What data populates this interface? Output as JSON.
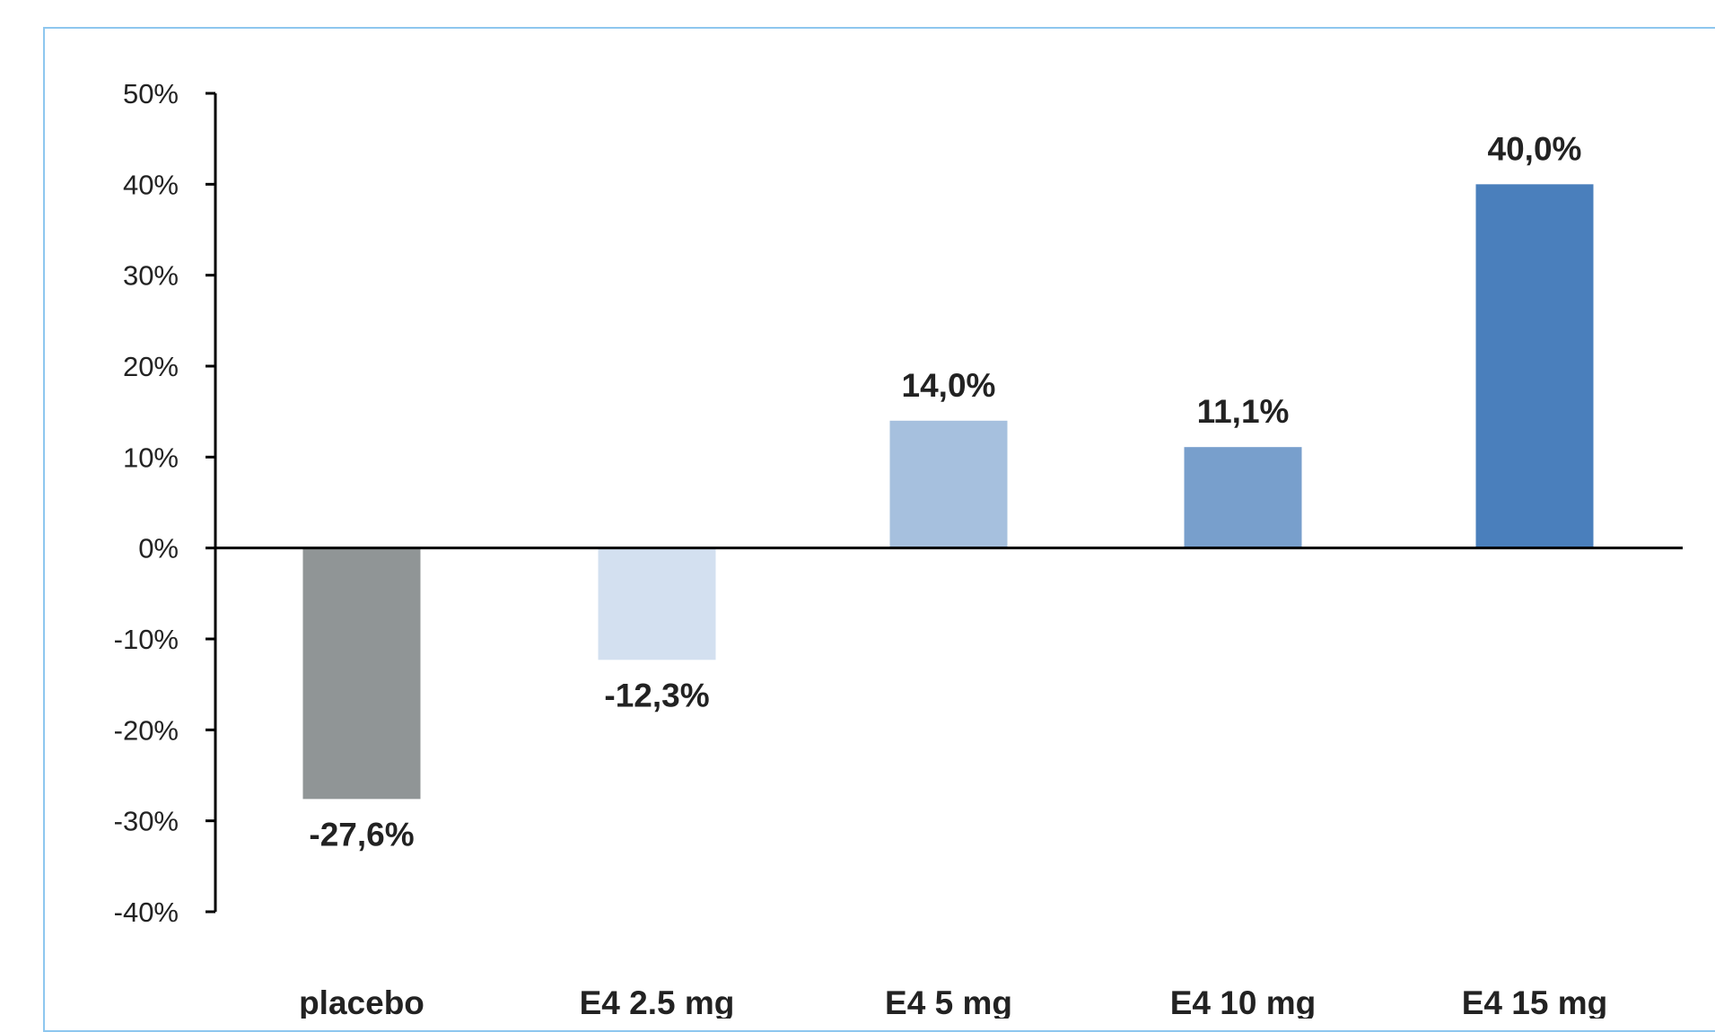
{
  "chart_data": {
    "type": "bar",
    "title": "",
    "xlabel": "",
    "ylabel": "",
    "categories": [
      "placebo",
      "E4 2.5 mg",
      "E4 5 mg",
      "E4 10 mg",
      "E4 15 mg"
    ],
    "values": [
      -27.6,
      -12.3,
      14.0,
      11.1,
      40.0
    ],
    "value_labels": [
      "-27,6%",
      "-12,3%",
      "14,0%",
      "11,1%",
      "40,0%"
    ],
    "bar_colors": [
      "#909596",
      "#d3e0f0",
      "#a6c0de",
      "#789fcc",
      "#4a7fbc"
    ],
    "ylim": [
      -40,
      50
    ],
    "yticks": [
      50,
      40,
      30,
      20,
      10,
      0,
      -10,
      -20,
      -30,
      -40
    ],
    "ytick_labels": [
      "50%",
      "40%",
      "30%",
      "20%",
      "10%",
      "0%",
      "-10%",
      "-20%",
      "-30%",
      "-40%"
    ],
    "grid": false,
    "legend": "none",
    "frame_color": "#8ec7ef",
    "axis_color": "#000000"
  }
}
